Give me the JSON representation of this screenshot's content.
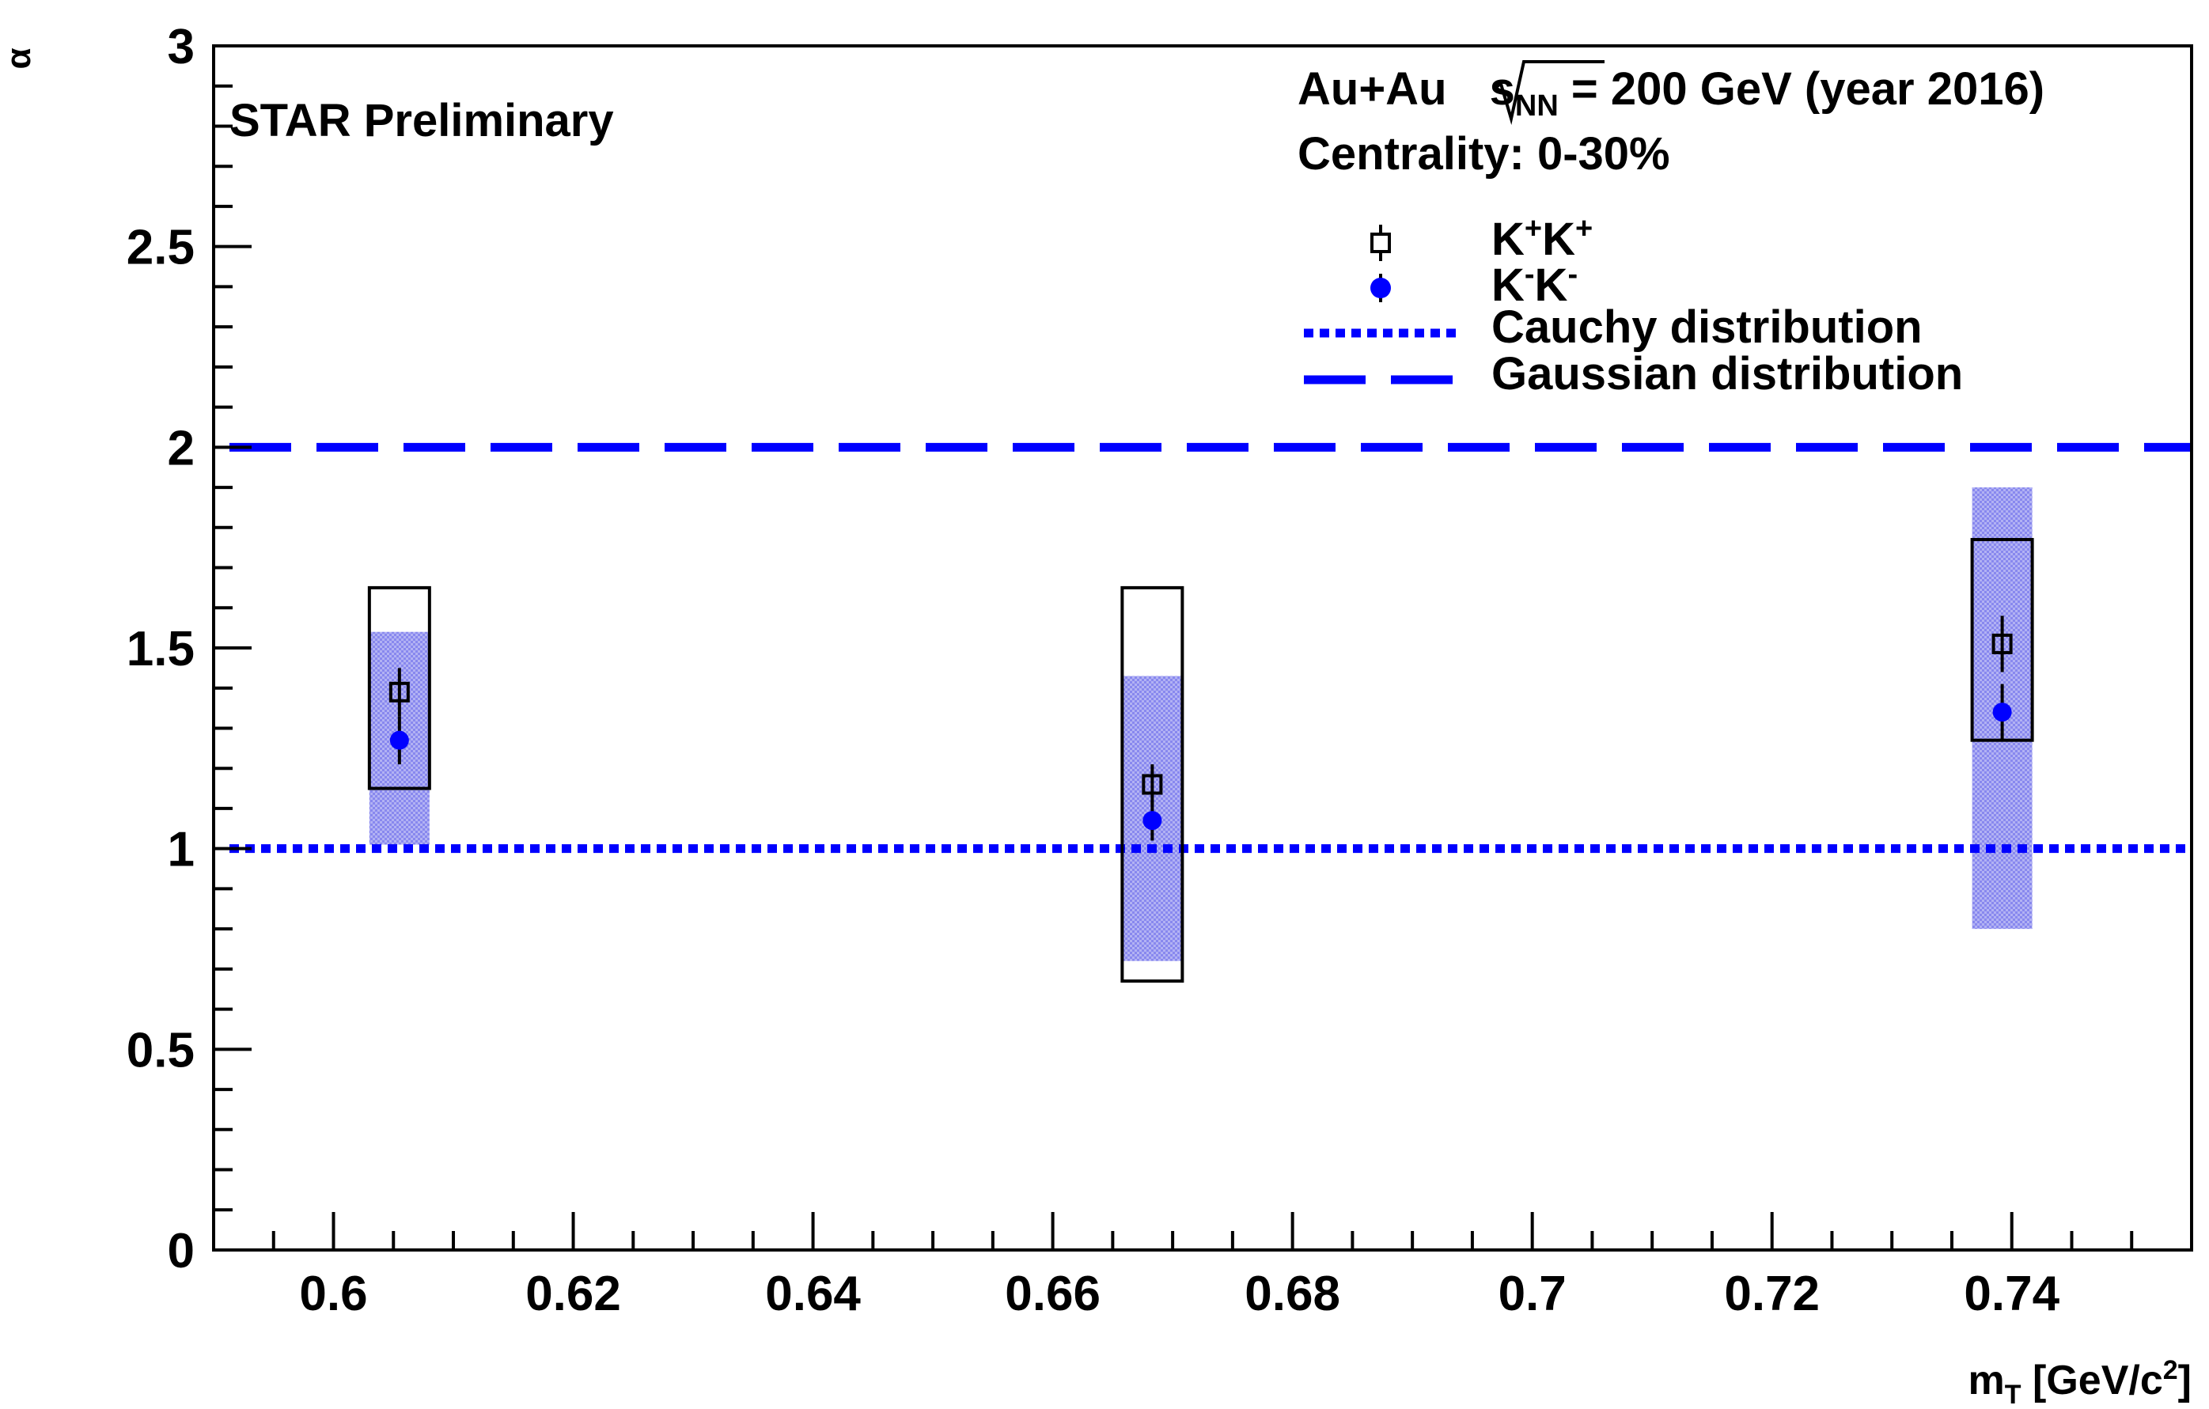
{
  "chart_data": {
    "type": "scatter",
    "title": "",
    "xlabel": "m",
    "xlabel_sub": "T",
    "xlabel_unit": " [GeV/c",
    "xlabel_sup": "2",
    "xlabel_close": "]",
    "ylabel": "α",
    "xlim": [
      0.59,
      0.755
    ],
    "ylim": [
      0,
      3
    ],
    "x_ticks": [
      {
        "value": 0.6,
        "label": "0.6"
      },
      {
        "value": 0.62,
        "label": "0.62"
      },
      {
        "value": 0.64,
        "label": "0.64"
      },
      {
        "value": 0.66,
        "label": "0.66"
      },
      {
        "value": 0.68,
        "label": "0.68"
      },
      {
        "value": 0.7,
        "label": "0.7"
      },
      {
        "value": 0.72,
        "label": "0.72"
      },
      {
        "value": 0.74,
        "label": "0.74"
      }
    ],
    "y_ticks": [
      {
        "value": 0,
        "label": "0"
      },
      {
        "value": 0.5,
        "label": "0.5"
      },
      {
        "value": 1,
        "label": "1"
      },
      {
        "value": 1.5,
        "label": "1.5"
      },
      {
        "value": 2,
        "label": "2"
      },
      {
        "value": 2.5,
        "label": "2.5"
      },
      {
        "value": 3,
        "label": "3"
      }
    ],
    "annotations": {
      "preliminary": "STAR Preliminary",
      "system_prefix": "Au+Au ",
      "sqrt_s": "s",
      "sqrt_sub": "NN",
      "system_suffix": " = 200 GeV (year 2016)",
      "centrality": "Centrality: 0-30%"
    },
    "series": [
      {
        "name": "K+K+",
        "legend": {
          "base": "K",
          "sup1": "+",
          "base2": "K",
          "sup2": "+"
        },
        "marker": "open-square",
        "color": "#000000",
        "points": [
          {
            "x": 0.6055,
            "y": 1.39,
            "stat": 0.06,
            "sys_low": 1.15,
            "sys_high": 1.65
          },
          {
            "x": 0.6683,
            "y": 1.16,
            "stat": 0.05,
            "sys_low": 0.67,
            "sys_high": 1.65
          },
          {
            "x": 0.7392,
            "y": 1.51,
            "stat": 0.07,
            "sys_low": 1.27,
            "sys_high": 1.77
          }
        ]
      },
      {
        "name": "K-K-",
        "legend": {
          "base": "K",
          "sup1": "-",
          "base2": "K",
          "sup2": "-"
        },
        "marker": "filled-circle",
        "color": "#0000ff",
        "band_color": "#8888ee",
        "points": [
          {
            "x": 0.6055,
            "y": 1.27,
            "stat": 0.06,
            "sys_low": 1.01,
            "sys_high": 1.54
          },
          {
            "x": 0.6683,
            "y": 1.07,
            "stat": 0.05,
            "sys_low": 0.72,
            "sys_high": 1.43
          },
          {
            "x": 0.7392,
            "y": 1.34,
            "stat": 0.07,
            "sys_low": 0.8,
            "sys_high": 1.9
          }
        ]
      }
    ],
    "reference_lines": [
      {
        "name": "Cauchy distribution",
        "y": 1,
        "style": "dotted",
        "color": "#0000ff"
      },
      {
        "name": "Gaussian distribution",
        "y": 2,
        "style": "dashed",
        "color": "#0000ff"
      }
    ]
  }
}
